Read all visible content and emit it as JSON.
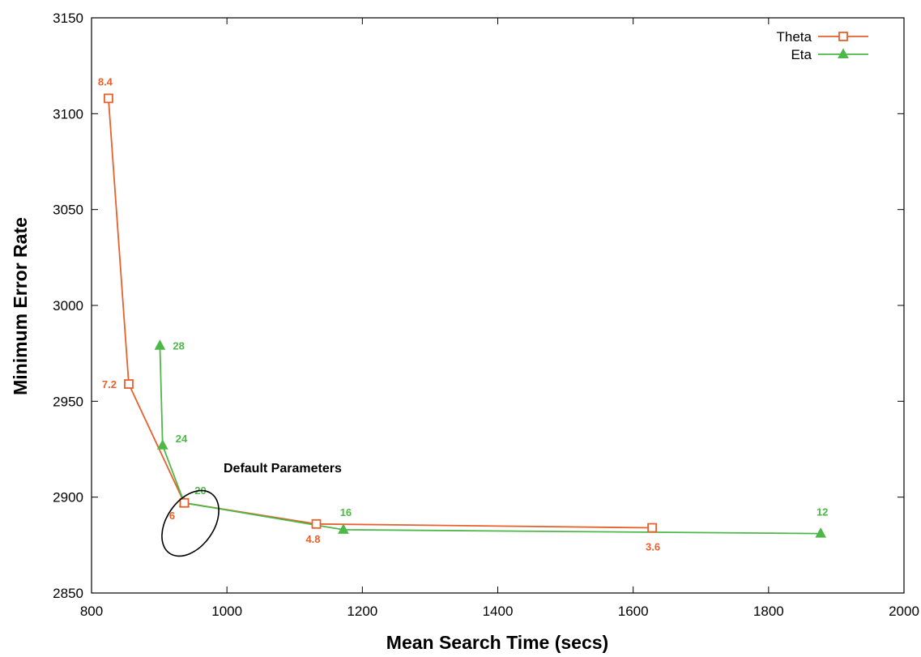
{
  "chart_data": {
    "type": "line",
    "title": "",
    "xlabel": "Mean Search Time (secs)",
    "ylabel": "Minimum Error Rate",
    "xlim": [
      800,
      2000
    ],
    "ylim": [
      2850,
      3150
    ],
    "xticks": [
      "800",
      "1000",
      "1200",
      "1400",
      "1600",
      "1800",
      "2000"
    ],
    "yticks": [
      "2850",
      "2900",
      "2950",
      "3000",
      "3050",
      "3100",
      "3150"
    ],
    "grid": false,
    "legend_position": "top-right",
    "series": [
      {
        "name": "Theta",
        "color": "#E8602C",
        "marker": "open-square",
        "points": [
          {
            "x": 825,
            "y": 3108,
            "label": "8.4"
          },
          {
            "x": 855,
            "y": 2959,
            "label": "7.2"
          },
          {
            "x": 937,
            "y": 2897,
            "label": "6"
          },
          {
            "x": 1132,
            "y": 2886,
            "label": "4.8"
          },
          {
            "x": 1628,
            "y": 2884,
            "label": "3.6"
          }
        ]
      },
      {
        "name": "Eta",
        "color": "#4DB848",
        "marker": "filled-triangle",
        "points": [
          {
            "x": 901,
            "y": 2979,
            "label": "28"
          },
          {
            "x": 905,
            "y": 2927,
            "label": "24"
          },
          {
            "x": 937,
            "y": 2897,
            "label": "20"
          },
          {
            "x": 1172,
            "y": 2883,
            "label": "16"
          },
          {
            "x": 1877,
            "y": 2881,
            "label": "12"
          }
        ]
      }
    ],
    "annotations": [
      {
        "text": "Default Parameters",
        "x": 937,
        "y": 2897
      }
    ]
  }
}
